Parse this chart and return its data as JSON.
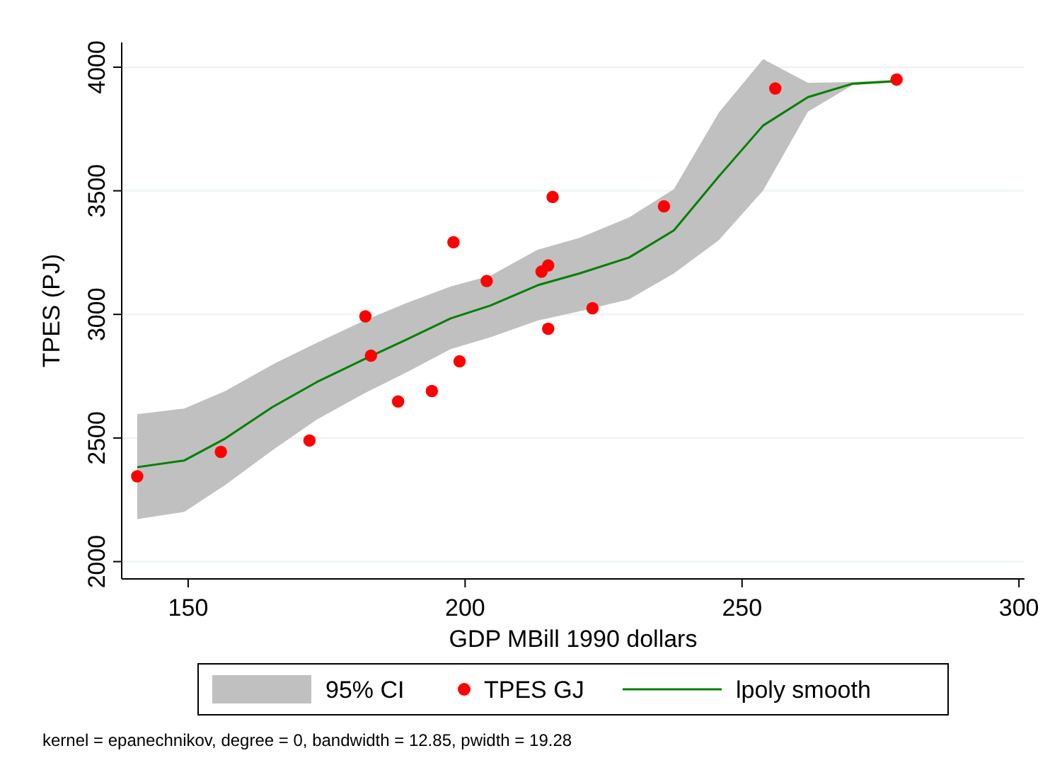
{
  "chart_data": {
    "type": "line",
    "xlabel": "GDP MBill 1990 dollars",
    "ylabel": "TPES (PJ)",
    "xlim": [
      138,
      301
    ],
    "xticks": [
      150,
      200,
      250,
      300
    ],
    "ylim": [
      1930,
      4100
    ],
    "yticks": [
      2000,
      2500,
      3000,
      3500,
      4000
    ],
    "grid": "y",
    "legend": "bottom",
    "annotations": [
      "95% CI",
      "kernel = epanechnikov, degree = 0, bandwidth = 12.85, pwidth = 19.28"
    ],
    "series": [
      {
        "name": "TPES GJ",
        "type": "scatter",
        "marker": "circle",
        "color": "#ff0000",
        "x": [
          140.8,
          155.9,
          171.9,
          182.0,
          183.0,
          187.9,
          194.0,
          197.9,
          199.0,
          203.9,
          213.8,
          215.0,
          215.0,
          215.8,
          223.0,
          235.9,
          256.0,
          277.9
        ],
        "values": [
          2345,
          2444,
          2490,
          2992,
          2833,
          2648,
          2690,
          3292,
          2810,
          3135,
          3173,
          3198,
          2942,
          3475,
          3025,
          3437,
          3914,
          3950
        ]
      },
      {
        "name": "lpoly smooth",
        "color": "#008000",
        "x": [
          140.8,
          149.3,
          156.7,
          165.2,
          173.2,
          181.7,
          189.4,
          197.4,
          204.6,
          213.1,
          220.7,
          229.6,
          237.7,
          245.8,
          253.8,
          261.9,
          269.9,
          277.9
        ],
        "values": [
          2382,
          2409,
          2498,
          2625,
          2726,
          2818,
          2898,
          2984,
          3036,
          3118,
          3166,
          3230,
          3340,
          3558,
          3764,
          3879,
          3933,
          3943
        ],
        "upper": [
          2596,
          2619,
          2690,
          2797,
          2885,
          2974,
          3046,
          3113,
          3157,
          3262,
          3310,
          3392,
          3507,
          3816,
          4033,
          3937,
          3940,
          3950
        ],
        "lower": [
          2172,
          2201,
          2310,
          2450,
          2574,
          2679,
          2765,
          2860,
          2908,
          2975,
          3013,
          3061,
          3166,
          3300,
          3501,
          3820,
          3927,
          3940
        ]
      }
    ]
  }
}
